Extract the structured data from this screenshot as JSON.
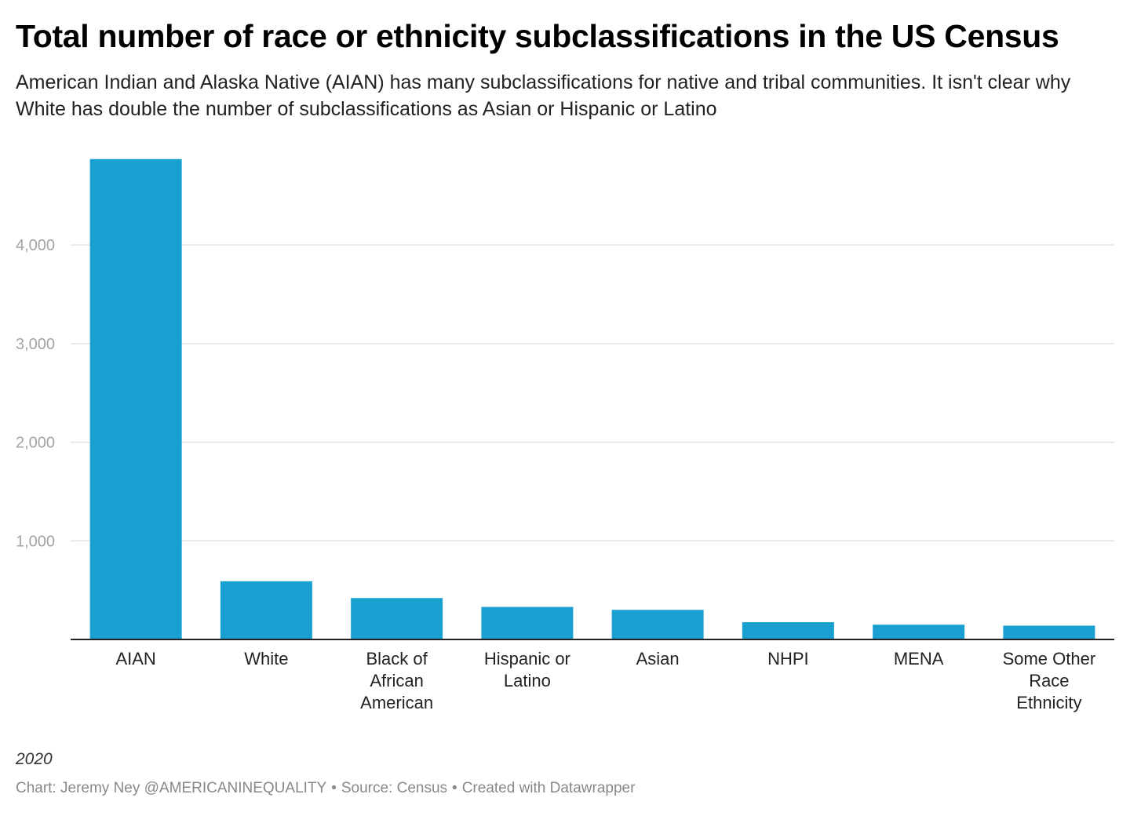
{
  "header": {
    "title": "Total number of race or ethnicity subclassifications in the US Census",
    "subtitle": "American Indian and Alaska Native (AIAN) has many subclassifications for native and tribal communities. It isn't clear why White has double the number of subclassifications as Asian or Hispanic or Latino"
  },
  "notes": {
    "year": "2020"
  },
  "footer": {
    "chart_credit": "Chart: Jeremy Ney @AMERICANINEQUALITY",
    "separator": "•",
    "source": "Source: Census",
    "created_with": "Created with Datawrapper"
  },
  "colors": {
    "bar": "#1aa0d0",
    "grid": "#e2e2e2",
    "axis": "#222222",
    "tick_label": "#a3a3a3",
    "category_label": "#222222"
  },
  "chart_data": {
    "type": "bar",
    "title": "Total number of race or ethnicity subclassifications in the US Census",
    "xlabel": "",
    "ylabel": "",
    "ylim": [
      0,
      4900
    ],
    "yticks": [
      1000,
      2000,
      3000,
      4000
    ],
    "ytick_labels": [
      "1,000",
      "2,000",
      "3,000",
      "4,000"
    ],
    "grid": true,
    "categories": [
      [
        "AIAN"
      ],
      [
        "White"
      ],
      [
        "Black of",
        "African",
        "American"
      ],
      [
        "Hispanic or",
        "Latino"
      ],
      [
        "Asian"
      ],
      [
        "NHPI"
      ],
      [
        "MENA"
      ],
      [
        "Some Other",
        "Race",
        "Ethnicity"
      ]
    ],
    "values": [
      4870,
      590,
      420,
      330,
      300,
      175,
      150,
      140
    ]
  }
}
